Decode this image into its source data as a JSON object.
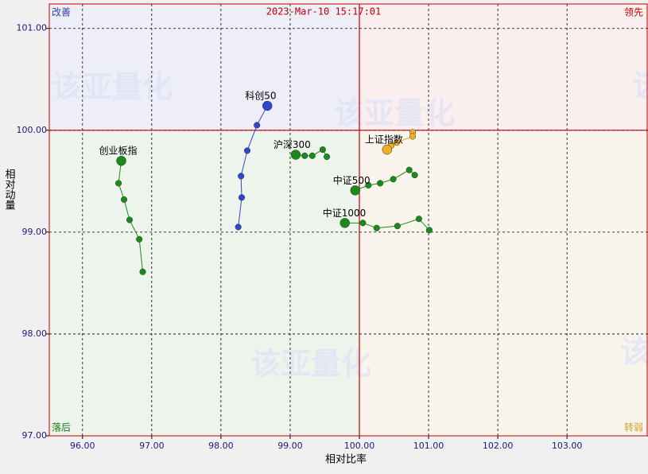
{
  "chart_data": {
    "type": "rrg",
    "timestamp": "2023-Mar-10 15:17:01",
    "x_label": "相对比率",
    "y_label": "相对动量",
    "quadrants": {
      "improving": "改善",
      "leading": "领先",
      "lagging": "落后",
      "weakening": "转弱"
    },
    "watermark": "该亚量化",
    "center": [
      100,
      100
    ],
    "xlim": [
      95.52,
      104.17
    ],
    "ylim": [
      97.0,
      101.24
    ],
    "xticks": [
      {
        "value": 96,
        "label": "96.00"
      },
      {
        "value": 97,
        "label": "97.00"
      },
      {
        "value": 98,
        "label": "98.00"
      },
      {
        "value": 99,
        "label": "99.00"
      },
      {
        "value": 100,
        "label": "100.00"
      },
      {
        "value": 101,
        "label": "101.00"
      },
      {
        "value": 102,
        "label": "102.00"
      },
      {
        "value": 103,
        "label": "103.00"
      }
    ],
    "yticks": [
      {
        "value": 97,
        "label": "97.00"
      },
      {
        "value": 98,
        "label": "98.00"
      },
      {
        "value": 99,
        "label": "99.00"
      },
      {
        "value": 100,
        "label": "100.00"
      },
      {
        "value": 101,
        "label": "101.00"
      }
    ],
    "grid": true,
    "series": [
      {
        "name": "创业板指",
        "color": "#1a8a1a",
        "x": [
          96.87,
          96.82,
          96.68,
          96.6,
          96.52,
          96.56
        ],
        "y": [
          98.61,
          98.93,
          99.12,
          99.32,
          99.48,
          99.7
        ]
      },
      {
        "name": "科创50",
        "color": "#3344cc",
        "x": [
          98.25,
          98.3,
          98.29,
          98.38,
          98.52,
          98.67
        ],
        "y": [
          99.05,
          99.34,
          99.55,
          99.8,
          100.05,
          100.24
        ]
      },
      {
        "name": "沪深300",
        "color": "#1a8a1a",
        "x": [
          99.53,
          99.47,
          99.32,
          99.21,
          99.08
        ],
        "y": [
          99.74,
          99.81,
          99.75,
          99.75,
          99.76
        ]
      },
      {
        "name": "上证指数",
        "color": "#f0b020",
        "x": [
          100.77,
          100.77,
          100.54,
          100.46,
          100.4
        ],
        "y": [
          99.98,
          99.94,
          99.88,
          99.85,
          99.81
        ]
      },
      {
        "name": "中证500",
        "color": "#1a8a1a",
        "x": [
          100.8,
          100.72,
          100.49,
          100.3,
          100.13,
          99.94
        ],
        "y": [
          99.56,
          99.61,
          99.52,
          99.48,
          99.46,
          99.41
        ]
      },
      {
        "name": "中证1000",
        "color": "#1a8a1a",
        "x": [
          101.01,
          100.86,
          100.55,
          100.25,
          100.05,
          99.79
        ],
        "y": [
          99.02,
          99.13,
          99.06,
          99.04,
          99.09,
          99.09
        ]
      }
    ]
  }
}
